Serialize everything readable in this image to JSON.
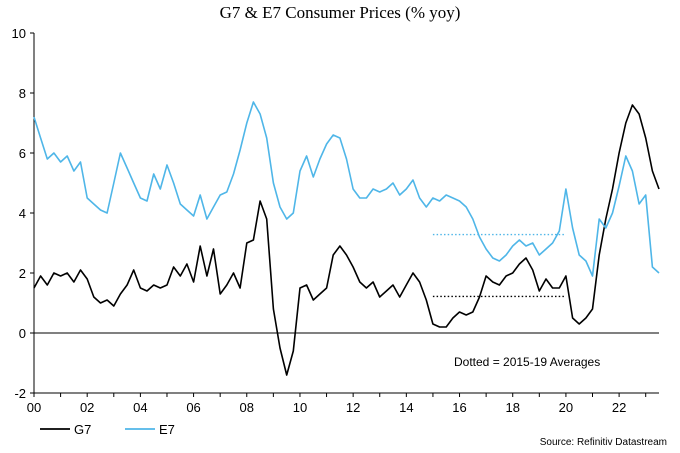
{
  "chart_data": {
    "type": "line",
    "title": "G7 & E7 Consumer Prices (% yoy)",
    "xlabel": "",
    "ylabel": "",
    "x_ticks": [
      "00",
      "02",
      "04",
      "06",
      "08",
      "10",
      "12",
      "14",
      "16",
      "18",
      "20",
      "22"
    ],
    "y_ticks": [
      "-2",
      "0",
      "2",
      "4",
      "6",
      "8",
      "10"
    ],
    "xlim": [
      2000.0,
      2023.5
    ],
    "ylim": [
      -2,
      10
    ],
    "grid": false,
    "legend_position": "bottom-left",
    "annotation": "Dotted  = 2015-19 Averages",
    "source": "Source: Refinitiv Datastream",
    "series": [
      {
        "name": "G7",
        "color": "#000000",
        "style": "solid",
        "points": [
          [
            2000.0,
            1.5
          ],
          [
            2000.25,
            1.9
          ],
          [
            2000.5,
            1.6
          ],
          [
            2000.75,
            2.0
          ],
          [
            2001.0,
            1.9
          ],
          [
            2001.25,
            2.0
          ],
          [
            2001.5,
            1.7
          ],
          [
            2001.75,
            2.1
          ],
          [
            2002.0,
            1.8
          ],
          [
            2002.25,
            1.2
          ],
          [
            2002.5,
            1.0
          ],
          [
            2002.75,
            1.1
          ],
          [
            2003.0,
            0.9
          ],
          [
            2003.25,
            1.3
          ],
          [
            2003.5,
            1.6
          ],
          [
            2003.75,
            2.1
          ],
          [
            2004.0,
            1.5
          ],
          [
            2004.25,
            1.4
          ],
          [
            2004.5,
            1.6
          ],
          [
            2004.75,
            1.5
          ],
          [
            2005.0,
            1.6
          ],
          [
            2005.25,
            2.2
          ],
          [
            2005.5,
            1.9
          ],
          [
            2005.75,
            2.3
          ],
          [
            2006.0,
            1.7
          ],
          [
            2006.25,
            2.9
          ],
          [
            2006.5,
            1.9
          ],
          [
            2006.75,
            2.8
          ],
          [
            2007.0,
            1.3
          ],
          [
            2007.25,
            1.6
          ],
          [
            2007.5,
            2.0
          ],
          [
            2007.75,
            1.5
          ],
          [
            2008.0,
            3.0
          ],
          [
            2008.25,
            3.1
          ],
          [
            2008.5,
            4.4
          ],
          [
            2008.75,
            3.8
          ],
          [
            2009.0,
            0.8
          ],
          [
            2009.25,
            -0.5
          ],
          [
            2009.5,
            -1.4
          ],
          [
            2009.75,
            -0.6
          ],
          [
            2010.0,
            1.5
          ],
          [
            2010.25,
            1.6
          ],
          [
            2010.5,
            1.1
          ],
          [
            2010.75,
            1.3
          ],
          [
            2011.0,
            1.5
          ],
          [
            2011.25,
            2.6
          ],
          [
            2011.5,
            2.9
          ],
          [
            2011.75,
            2.6
          ],
          [
            2012.0,
            2.2
          ],
          [
            2012.25,
            1.7
          ],
          [
            2012.5,
            1.5
          ],
          [
            2012.75,
            1.7
          ],
          [
            2013.0,
            1.2
          ],
          [
            2013.25,
            1.4
          ],
          [
            2013.5,
            1.6
          ],
          [
            2013.75,
            1.2
          ],
          [
            2014.0,
            1.6
          ],
          [
            2014.25,
            2.0
          ],
          [
            2014.5,
            1.7
          ],
          [
            2014.75,
            1.1
          ],
          [
            2015.0,
            0.3
          ],
          [
            2015.25,
            0.2
          ],
          [
            2015.5,
            0.2
          ],
          [
            2015.75,
            0.5
          ],
          [
            2016.0,
            0.7
          ],
          [
            2016.25,
            0.6
          ],
          [
            2016.5,
            0.7
          ],
          [
            2016.75,
            1.2
          ],
          [
            2017.0,
            1.9
          ],
          [
            2017.25,
            1.7
          ],
          [
            2017.5,
            1.6
          ],
          [
            2017.75,
            1.9
          ],
          [
            2018.0,
            2.0
          ],
          [
            2018.25,
            2.3
          ],
          [
            2018.5,
            2.5
          ],
          [
            2018.75,
            2.1
          ],
          [
            2019.0,
            1.4
          ],
          [
            2019.25,
            1.8
          ],
          [
            2019.5,
            1.5
          ],
          [
            2019.75,
            1.5
          ],
          [
            2020.0,
            1.9
          ],
          [
            2020.25,
            0.5
          ],
          [
            2020.5,
            0.3
          ],
          [
            2020.75,
            0.5
          ],
          [
            2021.0,
            0.8
          ],
          [
            2021.25,
            2.6
          ],
          [
            2021.5,
            3.8
          ],
          [
            2021.75,
            4.8
          ],
          [
            2022.0,
            6.0
          ],
          [
            2022.25,
            7.0
          ],
          [
            2022.5,
            7.6
          ],
          [
            2022.75,
            7.3
          ],
          [
            2023.0,
            6.5
          ],
          [
            2023.25,
            5.4
          ],
          [
            2023.5,
            4.8
          ]
        ]
      },
      {
        "name": "E7",
        "color": "#4fb6e8",
        "style": "solid",
        "points": [
          [
            2000.0,
            7.2
          ],
          [
            2000.25,
            6.5
          ],
          [
            2000.5,
            5.8
          ],
          [
            2000.75,
            6.0
          ],
          [
            2001.0,
            5.7
          ],
          [
            2001.25,
            5.9
          ],
          [
            2001.5,
            5.4
          ],
          [
            2001.75,
            5.7
          ],
          [
            2002.0,
            4.5
          ],
          [
            2002.25,
            4.3
          ],
          [
            2002.5,
            4.1
          ],
          [
            2002.75,
            4.0
          ],
          [
            2003.0,
            5.0
          ],
          [
            2003.25,
            6.0
          ],
          [
            2003.5,
            5.5
          ],
          [
            2003.75,
            5.0
          ],
          [
            2004.0,
            4.5
          ],
          [
            2004.25,
            4.4
          ],
          [
            2004.5,
            5.3
          ],
          [
            2004.75,
            4.8
          ],
          [
            2005.0,
            5.6
          ],
          [
            2005.25,
            5.0
          ],
          [
            2005.5,
            4.3
          ],
          [
            2005.75,
            4.1
          ],
          [
            2006.0,
            3.9
          ],
          [
            2006.25,
            4.6
          ],
          [
            2006.5,
            3.8
          ],
          [
            2006.75,
            4.2
          ],
          [
            2007.0,
            4.6
          ],
          [
            2007.25,
            4.7
          ],
          [
            2007.5,
            5.3
          ],
          [
            2007.75,
            6.1
          ],
          [
            2008.0,
            7.0
          ],
          [
            2008.25,
            7.7
          ],
          [
            2008.5,
            7.3
          ],
          [
            2008.75,
            6.5
          ],
          [
            2009.0,
            5.0
          ],
          [
            2009.25,
            4.2
          ],
          [
            2009.5,
            3.8
          ],
          [
            2009.75,
            4.0
          ],
          [
            2010.0,
            5.4
          ],
          [
            2010.25,
            5.9
          ],
          [
            2010.5,
            5.2
          ],
          [
            2010.75,
            5.8
          ],
          [
            2011.0,
            6.3
          ],
          [
            2011.25,
            6.6
          ],
          [
            2011.5,
            6.5
          ],
          [
            2011.75,
            5.8
          ],
          [
            2012.0,
            4.8
          ],
          [
            2012.25,
            4.5
          ],
          [
            2012.5,
            4.5
          ],
          [
            2012.75,
            4.8
          ],
          [
            2013.0,
            4.7
          ],
          [
            2013.25,
            4.8
          ],
          [
            2013.5,
            5.0
          ],
          [
            2013.75,
            4.6
          ],
          [
            2014.0,
            4.8
          ],
          [
            2014.25,
            5.1
          ],
          [
            2014.5,
            4.5
          ],
          [
            2014.75,
            4.2
          ],
          [
            2015.0,
            4.5
          ],
          [
            2015.25,
            4.4
          ],
          [
            2015.5,
            4.6
          ],
          [
            2015.75,
            4.5
          ],
          [
            2016.0,
            4.4
          ],
          [
            2016.25,
            4.2
          ],
          [
            2016.5,
            3.8
          ],
          [
            2016.75,
            3.2
          ],
          [
            2017.0,
            2.8
          ],
          [
            2017.25,
            2.5
          ],
          [
            2017.5,
            2.4
          ],
          [
            2017.75,
            2.6
          ],
          [
            2018.0,
            2.9
          ],
          [
            2018.25,
            3.1
          ],
          [
            2018.5,
            2.9
          ],
          [
            2018.75,
            3.0
          ],
          [
            2019.0,
            2.6
          ],
          [
            2019.25,
            2.8
          ],
          [
            2019.5,
            3.0
          ],
          [
            2019.75,
            3.4
          ],
          [
            2020.0,
            4.8
          ],
          [
            2020.25,
            3.5
          ],
          [
            2020.5,
            2.6
          ],
          [
            2020.75,
            2.4
          ],
          [
            2021.0,
            1.9
          ],
          [
            2021.25,
            3.8
          ],
          [
            2021.5,
            3.5
          ],
          [
            2021.75,
            4.0
          ],
          [
            2022.0,
            4.9
          ],
          [
            2022.25,
            5.9
          ],
          [
            2022.5,
            5.4
          ],
          [
            2022.75,
            4.3
          ],
          [
            2023.0,
            4.6
          ],
          [
            2023.25,
            2.2
          ],
          [
            2023.5,
            2.0
          ]
        ]
      },
      {
        "name": "",
        "color": "#000000",
        "style": "dotted",
        "points": [
          [
            2015.0,
            1.22
          ],
          [
            2020.0,
            1.22
          ]
        ]
      },
      {
        "name": "",
        "color": "#4fb6e8",
        "style": "dotted",
        "points": [
          [
            2015.0,
            3.28
          ],
          [
            2020.0,
            3.28
          ]
        ]
      }
    ]
  }
}
